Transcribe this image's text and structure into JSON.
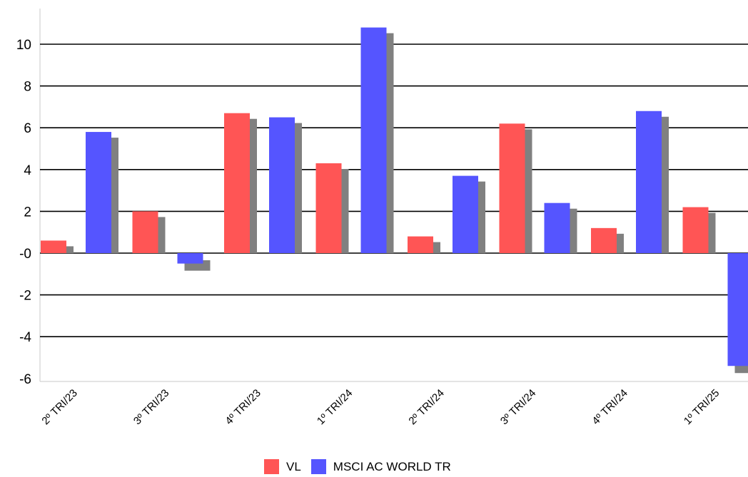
{
  "chart_data": {
    "type": "bar",
    "categories": [
      "2º TRI/23",
      "3º TRI/23",
      "4º TRI/23",
      "1º TRI/24",
      "2º TRI/24",
      "3º TRI/24",
      "4º TRI/24",
      "1º TRI/25"
    ],
    "series": [
      {
        "name": "VL",
        "color": "#ff5555",
        "values": [
          0.6,
          2.0,
          6.7,
          4.3,
          0.8,
          6.2,
          1.2,
          2.2
        ]
      },
      {
        "name": "MSCI AC WORLD TR",
        "color": "#5555ff",
        "values": [
          5.8,
          -0.5,
          6.5,
          10.8,
          3.7,
          2.4,
          6.8,
          -5.4
        ]
      }
    ],
    "y_ticks": [
      "10",
      "8",
      "6",
      "4",
      "2",
      "-0",
      "-2",
      "-4",
      "-6"
    ],
    "ylim": [
      -6,
      11.5
    ],
    "grid": true,
    "legend_position": "bottom",
    "title": "",
    "xlabel": "",
    "ylabel": ""
  }
}
